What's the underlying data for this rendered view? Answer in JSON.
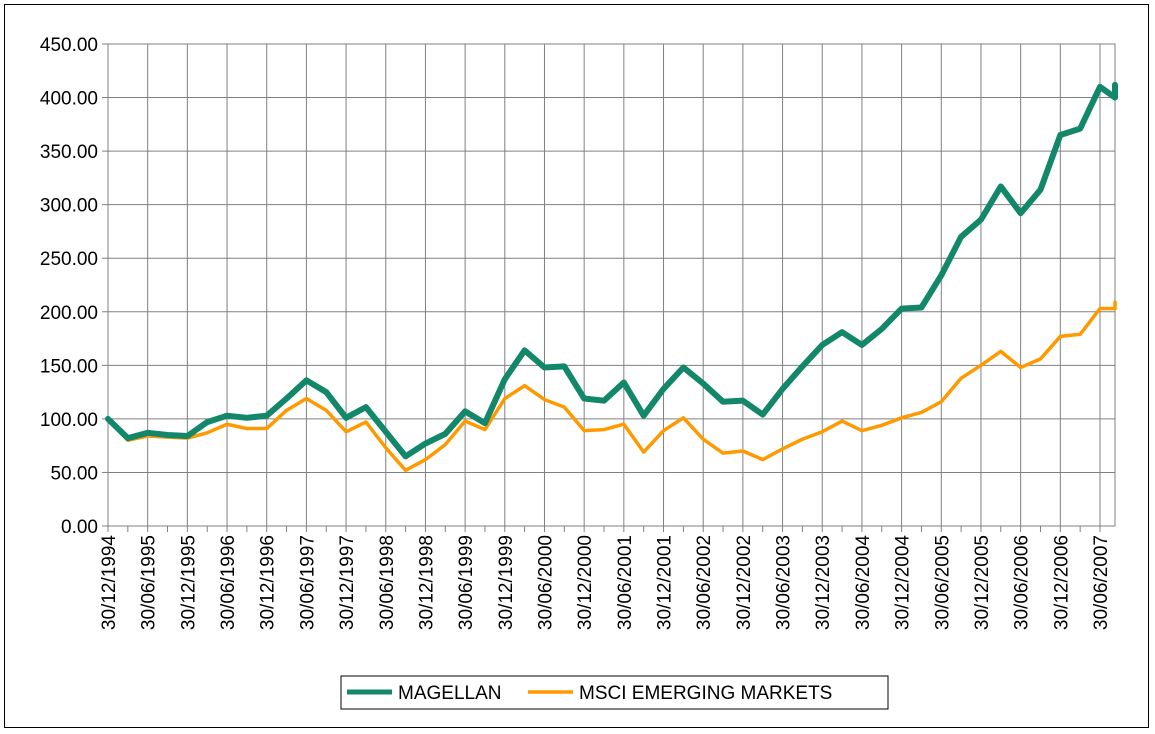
{
  "chart_data": {
    "type": "line",
    "title": "",
    "xlabel": "",
    "ylabel": "",
    "ylim": [
      0,
      450
    ],
    "y_ticks": [
      "0.00",
      "50.00",
      "100.00",
      "150.00",
      "200.00",
      "250.00",
      "300.00",
      "350.00",
      "400.00",
      "450.00"
    ],
    "x_tick_labels": [
      "30/12/1994",
      "30/06/1995",
      "30/12/1995",
      "30/06/1996",
      "30/12/1996",
      "30/06/1997",
      "30/12/1997",
      "30/06/1998",
      "30/12/1998",
      "30/06/1999",
      "30/12/1999",
      "30/06/2000",
      "30/12/2000",
      "30/06/2001",
      "30/12/2001",
      "30/06/2002",
      "30/12/2002",
      "30/06/2003",
      "30/12/2003",
      "30/06/2004",
      "30/12/2004",
      "30/06/2005",
      "30/12/2005",
      "30/06/2006",
      "30/12/2006",
      "30/06/2007"
    ],
    "x_period": "quarterly",
    "grid": true,
    "legend_position": "bottom-center",
    "series": [
      {
        "name": "MAGELLAN",
        "color": "#13876a",
        "values": [
          100,
          82,
          87,
          85,
          84,
          97,
          103,
          101,
          103,
          119,
          136,
          125,
          101,
          111,
          88,
          65,
          77,
          86,
          107,
          96,
          137,
          164,
          148,
          149,
          119,
          117,
          134,
          103,
          128,
          148,
          133,
          116,
          117,
          104,
          128,
          149,
          169,
          181,
          169,
          184,
          203,
          204,
          234,
          270,
          286,
          317,
          292,
          314,
          365,
          371,
          410,
          400,
          412
        ]
      },
      {
        "name": "MSCI EMERGING MARKETS",
        "color": "#ff9900",
        "values": [
          100,
          80,
          84,
          83,
          82,
          87,
          95,
          91,
          91,
          108,
          119,
          108,
          88,
          97,
          73,
          52,
          62,
          76,
          98,
          90,
          119,
          131,
          118,
          111,
          89,
          90,
          95,
          69,
          89,
          101,
          81,
          68,
          70,
          62,
          72,
          81,
          88,
          98,
          89,
          94,
          101,
          106,
          116,
          138,
          150,
          163,
          148,
          156,
          177,
          179,
          203,
          203,
          209
        ]
      }
    ]
  }
}
